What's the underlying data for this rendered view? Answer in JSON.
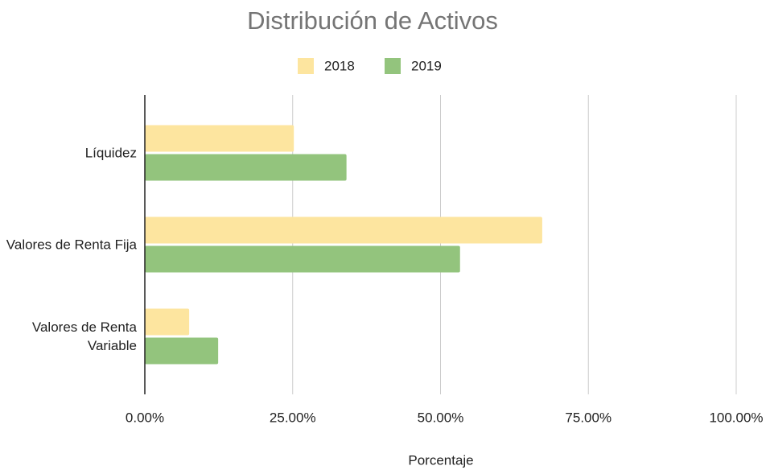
{
  "chart_data": {
    "type": "barh",
    "title": "Distribución de Activos",
    "categories": [
      "Líquidez",
      "Valores de Renta Fija",
      "Valores de Renta Variable"
    ],
    "series": [
      {
        "name": "2018",
        "color": "#fde59f",
        "values": [
          25.2,
          67.2,
          7.5
        ]
      },
      {
        "name": "2019",
        "color": "#93c47d",
        "values": [
          34.1,
          53.3,
          12.4
        ]
      }
    ],
    "xlim": [
      0,
      100
    ],
    "xticks": [
      {
        "value": 0,
        "label": "0.00%"
      },
      {
        "value": 25,
        "label": "25.00%"
      },
      {
        "value": 50,
        "label": "50.00%"
      },
      {
        "value": 75,
        "label": "75.00%"
      },
      {
        "value": 100,
        "label": "100.00%"
      }
    ],
    "xlabel": "Porcentaje",
    "grid": true,
    "legend": "top"
  }
}
